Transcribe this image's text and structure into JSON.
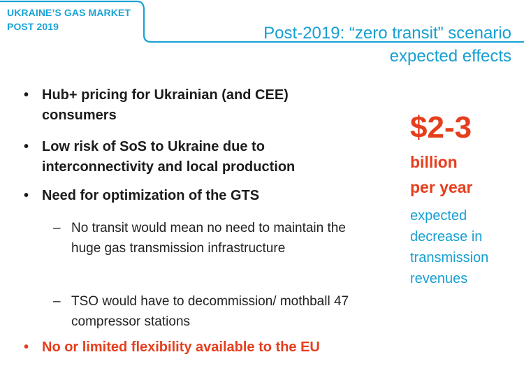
{
  "header": {
    "section_label_line1": "UKRAINE’S GAS MARKET",
    "section_label_line2": "POST 2019",
    "title_line1": "Post-2019: “zero transit” scenario",
    "title_line2": "expected effects"
  },
  "bullets": [
    "Hub+ pricing for Ukrainian (and CEE) consumers",
    "Low risk of SoS to Ukraine due to interconnectivity and local production",
    "Need for optimization of the GTS",
    "No or limited flexibility available to the EU"
  ],
  "sub_bullets": [
    "No transit would mean no need to maintain the huge gas transmission infrastructure",
    "TSO would have to decommission/ mothball 47 compressor stations"
  ],
  "stats": {
    "amount": "$2-3",
    "unit_line1": "billion",
    "unit_line2": "per year",
    "description_line1": "expected",
    "description_line2": "decrease in",
    "description_line3": "transmission",
    "description_line4": "revenues"
  },
  "colors": {
    "accent_blue": "#169fd1",
    "accent_red": "#e63e1d",
    "text_dark": "#1b1b1b"
  }
}
